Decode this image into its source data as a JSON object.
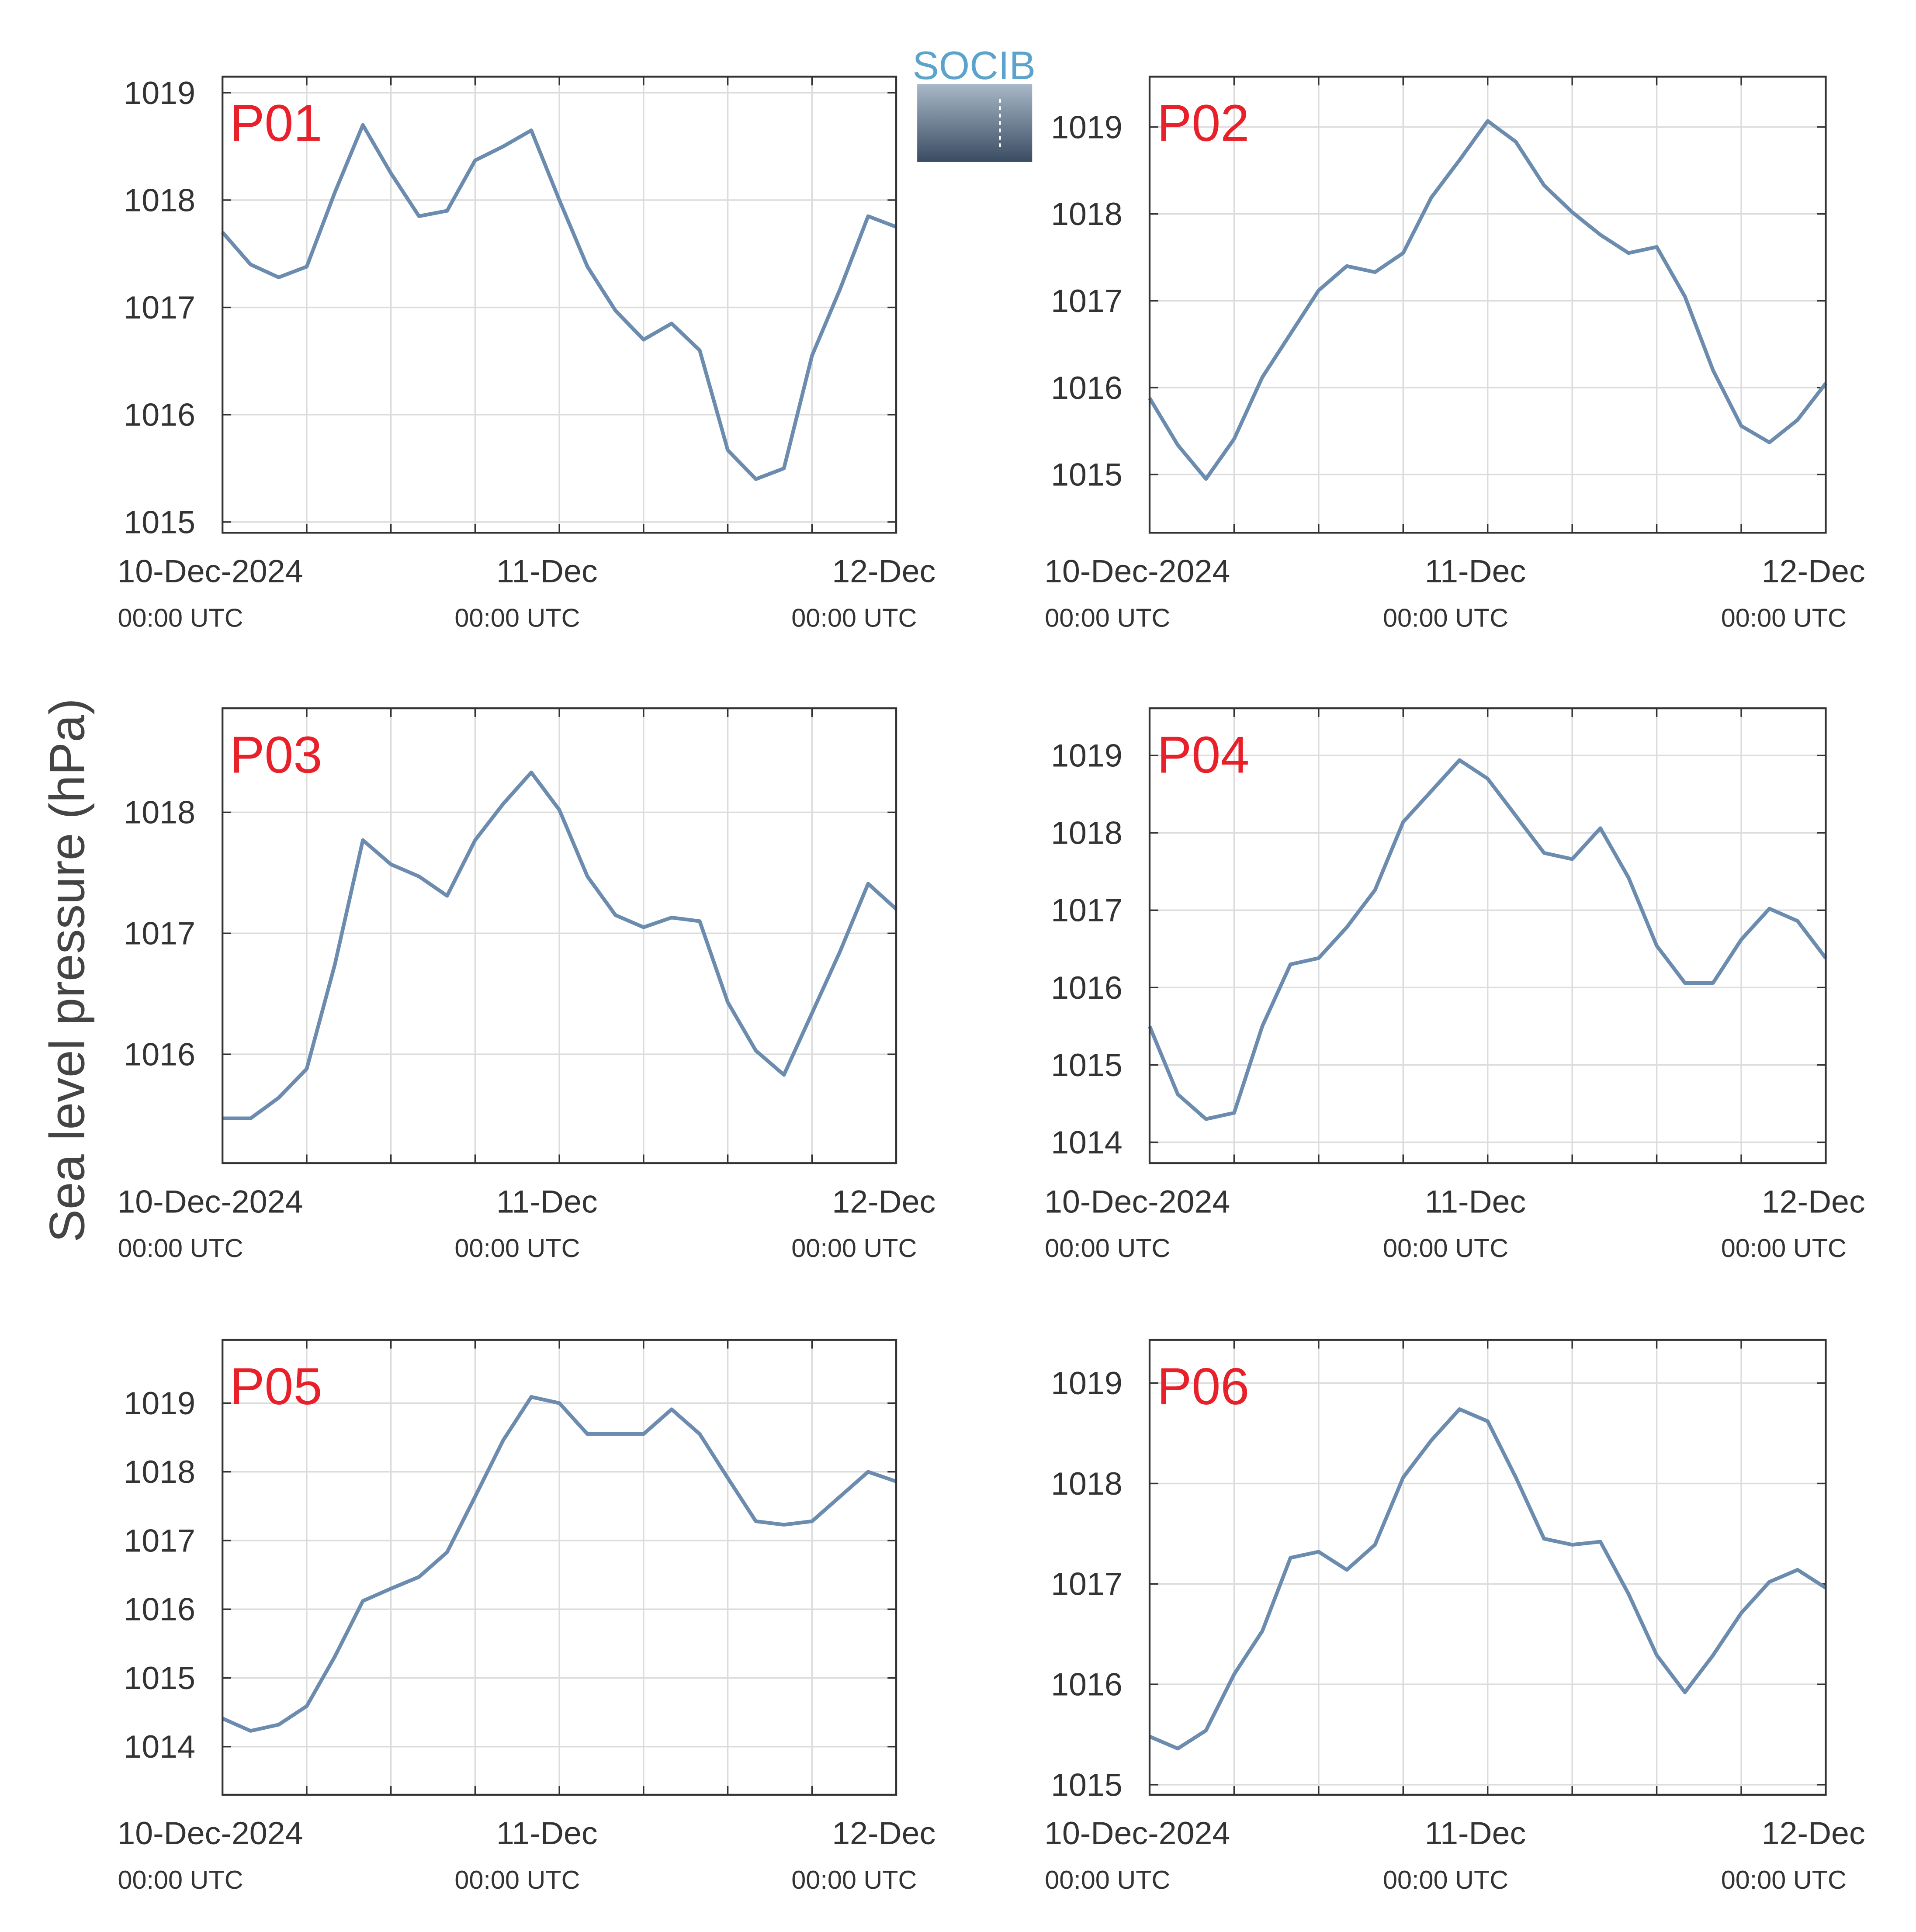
{
  "ylabel": "Sea level pressure (hPa)",
  "logo": "SOCIB",
  "chart_data": [
    {
      "type": "line",
      "title": "P01",
      "color": "#6b8cae",
      "grid": true,
      "x": [
        "2024-12-10T00:00Z",
        "2024-12-10T02:00Z",
        "2024-12-10T04:00Z",
        "2024-12-10T06:00Z",
        "2024-12-10T08:00Z",
        "2024-12-10T10:00Z",
        "2024-12-10T12:00Z",
        "2024-12-10T14:00Z",
        "2024-12-10T16:00Z",
        "2024-12-10T18:00Z",
        "2024-12-10T20:00Z",
        "2024-12-10T22:00Z",
        "2024-12-11T00:00Z",
        "2024-12-11T02:00Z",
        "2024-12-11T04:00Z",
        "2024-12-11T06:00Z",
        "2024-12-11T08:00Z",
        "2024-12-11T10:00Z",
        "2024-12-11T12:00Z",
        "2024-12-11T14:00Z",
        "2024-12-11T16:00Z",
        "2024-12-11T18:00Z",
        "2024-12-11T20:00Z",
        "2024-12-11T22:00Z",
        "2024-12-12T00:00Z"
      ],
      "values": [
        1017.7,
        1017.4,
        1017.28,
        1017.38,
        1018.07,
        1018.7,
        1018.25,
        1017.85,
        1017.9,
        1018.37,
        1018.5,
        1018.65,
        1018.0,
        1017.38,
        1016.97,
        1016.7,
        1016.85,
        1016.6,
        1015.67,
        1015.4,
        1015.5,
        1016.55,
        1017.17,
        1017.85,
        1017.75
      ],
      "xlim": [
        "2024-12-10T00:00Z",
        "2024-12-12T00:00Z"
      ],
      "xticks": [
        {
          "value": "2024-12-10T00:00Z",
          "label": "10-Dec-2024",
          "sublabel": "00:00 UTC"
        },
        {
          "value": "2024-12-10T06:00Z"
        },
        {
          "value": "2024-12-10T12:00Z"
        },
        {
          "value": "2024-12-10T18:00Z"
        },
        {
          "value": "2024-12-11T00:00Z",
          "label": "11-Dec",
          "sublabel": "00:00 UTC"
        },
        {
          "value": "2024-12-11T06:00Z"
        },
        {
          "value": "2024-12-11T12:00Z"
        },
        {
          "value": "2024-12-11T18:00Z"
        },
        {
          "value": "2024-12-12T00:00Z",
          "label": "12-Dec",
          "sublabel": "00:00 UTC"
        }
      ],
      "ylim": [
        1014.9,
        1019.15
      ],
      "yticks": [
        1015,
        1016,
        1017,
        1018,
        1019
      ]
    },
    {
      "type": "line",
      "title": "P02",
      "color": "#6b8cae",
      "grid": true,
      "x": [
        "2024-12-10T00:00Z",
        "2024-12-10T02:00Z",
        "2024-12-10T04:00Z",
        "2024-12-10T06:00Z",
        "2024-12-10T08:00Z",
        "2024-12-10T10:00Z",
        "2024-12-10T12:00Z",
        "2024-12-10T14:00Z",
        "2024-12-10T16:00Z",
        "2024-12-10T18:00Z",
        "2024-12-10T20:00Z",
        "2024-12-10T22:00Z",
        "2024-12-11T00:00Z",
        "2024-12-11T02:00Z",
        "2024-12-11T04:00Z",
        "2024-12-11T06:00Z",
        "2024-12-11T08:00Z",
        "2024-12-11T10:00Z",
        "2024-12-11T12:00Z",
        "2024-12-11T14:00Z",
        "2024-12-11T16:00Z",
        "2024-12-11T18:00Z",
        "2024-12-11T20:00Z",
        "2024-12-11T22:00Z",
        "2024-12-12T00:00Z"
      ],
      "values": [
        1015.88,
        1015.34,
        1014.95,
        1015.41,
        1016.12,
        1016.62,
        1017.12,
        1017.4,
        1017.33,
        1017.55,
        1018.19,
        1018.62,
        1019.07,
        1018.83,
        1018.33,
        1018.02,
        1017.76,
        1017.55,
        1017.62,
        1017.05,
        1016.2,
        1015.56,
        1015.37,
        1015.63,
        1016.05
      ],
      "xlim": [
        "2024-12-10T00:00Z",
        "2024-12-12T00:00Z"
      ],
      "xticks": [
        {
          "value": "2024-12-10T00:00Z",
          "label": "10-Dec-2024",
          "sublabel": "00:00 UTC"
        },
        {
          "value": "2024-12-10T06:00Z"
        },
        {
          "value": "2024-12-10T12:00Z"
        },
        {
          "value": "2024-12-10T18:00Z"
        },
        {
          "value": "2024-12-11T00:00Z",
          "label": "11-Dec",
          "sublabel": "00:00 UTC"
        },
        {
          "value": "2024-12-11T06:00Z"
        },
        {
          "value": "2024-12-11T12:00Z"
        },
        {
          "value": "2024-12-11T18:00Z"
        },
        {
          "value": "2024-12-12T00:00Z",
          "label": "12-Dec",
          "sublabel": "00:00 UTC"
        }
      ],
      "ylim": [
        1014.33,
        1019.58
      ],
      "yticks": [
        1015,
        1016,
        1017,
        1018,
        1019
      ]
    },
    {
      "type": "line",
      "title": "P03",
      "color": "#6b8cae",
      "grid": true,
      "x": [
        "2024-12-10T00:00Z",
        "2024-12-10T02:00Z",
        "2024-12-10T04:00Z",
        "2024-12-10T06:00Z",
        "2024-12-10T08:00Z",
        "2024-12-10T10:00Z",
        "2024-12-10T12:00Z",
        "2024-12-10T14:00Z",
        "2024-12-10T16:00Z",
        "2024-12-10T18:00Z",
        "2024-12-10T20:00Z",
        "2024-12-10T22:00Z",
        "2024-12-11T00:00Z",
        "2024-12-11T02:00Z",
        "2024-12-11T04:00Z",
        "2024-12-11T06:00Z",
        "2024-12-11T08:00Z",
        "2024-12-11T10:00Z",
        "2024-12-11T12:00Z",
        "2024-12-11T14:00Z",
        "2024-12-11T16:00Z",
        "2024-12-11T18:00Z",
        "2024-12-11T20:00Z",
        "2024-12-11T22:00Z",
        "2024-12-12T00:00Z"
      ],
      "values": [
        1015.47,
        1015.47,
        1015.64,
        1015.88,
        1016.74,
        1017.77,
        1017.57,
        1017.47,
        1017.31,
        1017.77,
        1018.07,
        1018.33,
        1018.02,
        1017.47,
        1017.15,
        1017.05,
        1017.13,
        1017.1,
        1016.43,
        1016.03,
        1015.83,
        1016.34,
        1016.85,
        1017.41,
        1017.2
      ],
      "xlim": [
        "2024-12-10T00:00Z",
        "2024-12-12T00:00Z"
      ],
      "xticks": [
        {
          "value": "2024-12-10T00:00Z",
          "label": "10-Dec-2024",
          "sublabel": "00:00 UTC"
        },
        {
          "value": "2024-12-10T06:00Z"
        },
        {
          "value": "2024-12-10T12:00Z"
        },
        {
          "value": "2024-12-10T18:00Z"
        },
        {
          "value": "2024-12-11T00:00Z",
          "label": "11-Dec",
          "sublabel": "00:00 UTC"
        },
        {
          "value": "2024-12-11T06:00Z"
        },
        {
          "value": "2024-12-11T12:00Z"
        },
        {
          "value": "2024-12-11T18:00Z"
        },
        {
          "value": "2024-12-12T00:00Z",
          "label": "12-Dec",
          "sublabel": "00:00 UTC"
        }
      ],
      "ylim": [
        1015.1,
        1018.86
      ],
      "yticks": [
        1016,
        1017,
        1018
      ]
    },
    {
      "type": "line",
      "title": "P04",
      "color": "#6b8cae",
      "grid": true,
      "x": [
        "2024-12-10T00:00Z",
        "2024-12-10T02:00Z",
        "2024-12-10T04:00Z",
        "2024-12-10T06:00Z",
        "2024-12-10T08:00Z",
        "2024-12-10T10:00Z",
        "2024-12-10T12:00Z",
        "2024-12-10T14:00Z",
        "2024-12-10T16:00Z",
        "2024-12-10T18:00Z",
        "2024-12-10T20:00Z",
        "2024-12-10T22:00Z",
        "2024-12-11T00:00Z",
        "2024-12-11T02:00Z",
        "2024-12-11T04:00Z",
        "2024-12-11T06:00Z",
        "2024-12-11T08:00Z",
        "2024-12-11T10:00Z",
        "2024-12-11T12:00Z",
        "2024-12-11T14:00Z",
        "2024-12-11T16:00Z",
        "2024-12-11T18:00Z",
        "2024-12-11T20:00Z",
        "2024-12-11T22:00Z",
        "2024-12-12T00:00Z"
      ],
      "values": [
        1015.5,
        1014.62,
        1014.3,
        1014.38,
        1015.5,
        1016.3,
        1016.38,
        1016.78,
        1017.26,
        1018.14,
        1018.54,
        1018.94,
        1018.7,
        1018.22,
        1017.74,
        1017.66,
        1018.06,
        1017.42,
        1016.54,
        1016.06,
        1016.06,
        1016.62,
        1017.02,
        1016.86,
        1016.38
      ],
      "xlim": [
        "2024-12-10T00:00Z",
        "2024-12-12T00:00Z"
      ],
      "xticks": [
        {
          "value": "2024-12-10T00:00Z",
          "label": "10-Dec-2024",
          "sublabel": "00:00 UTC"
        },
        {
          "value": "2024-12-10T06:00Z"
        },
        {
          "value": "2024-12-10T12:00Z"
        },
        {
          "value": "2024-12-10T18:00Z"
        },
        {
          "value": "2024-12-11T00:00Z",
          "label": "11-Dec",
          "sublabel": "00:00 UTC"
        },
        {
          "value": "2024-12-11T06:00Z"
        },
        {
          "value": "2024-12-11T12:00Z"
        },
        {
          "value": "2024-12-11T18:00Z"
        },
        {
          "value": "2024-12-12T00:00Z",
          "label": "12-Dec",
          "sublabel": "00:00 UTC"
        }
      ],
      "ylim": [
        1013.73,
        1019.61
      ],
      "yticks": [
        1014,
        1015,
        1016,
        1017,
        1018,
        1019
      ]
    },
    {
      "type": "line",
      "title": "P05",
      "color": "#6b8cae",
      "grid": true,
      "x": [
        "2024-12-10T00:00Z",
        "2024-12-10T02:00Z",
        "2024-12-10T04:00Z",
        "2024-12-10T06:00Z",
        "2024-12-10T08:00Z",
        "2024-12-10T10:00Z",
        "2024-12-10T12:00Z",
        "2024-12-10T14:00Z",
        "2024-12-10T16:00Z",
        "2024-12-10T18:00Z",
        "2024-12-10T20:00Z",
        "2024-12-10T22:00Z",
        "2024-12-11T00:00Z",
        "2024-12-11T02:00Z",
        "2024-12-11T04:00Z",
        "2024-12-11T06:00Z",
        "2024-12-11T08:00Z",
        "2024-12-11T10:00Z",
        "2024-12-11T12:00Z",
        "2024-12-11T14:00Z",
        "2024-12-11T16:00Z",
        "2024-12-11T18:00Z",
        "2024-12-11T20:00Z",
        "2024-12-11T22:00Z",
        "2024-12-12T00:00Z"
      ],
      "values": [
        1014.41,
        1014.23,
        1014.32,
        1014.59,
        1015.31,
        1016.12,
        1016.3,
        1016.47,
        1016.83,
        1017.64,
        1018.46,
        1019.09,
        1019.0,
        1018.55,
        1018.55,
        1018.55,
        1018.91,
        1018.55,
        1017.91,
        1017.28,
        1017.23,
        1017.28,
        1017.64,
        1018.0,
        1017.86
      ],
      "xlim": [
        "2024-12-10T00:00Z",
        "2024-12-12T00:00Z"
      ],
      "xticks": [
        {
          "value": "2024-12-10T00:00Z",
          "label": "10-Dec-2024",
          "sublabel": "00:00 UTC"
        },
        {
          "value": "2024-12-10T06:00Z"
        },
        {
          "value": "2024-12-10T12:00Z"
        },
        {
          "value": "2024-12-10T18:00Z"
        },
        {
          "value": "2024-12-11T00:00Z",
          "label": "11-Dec",
          "sublabel": "00:00 UTC"
        },
        {
          "value": "2024-12-11T06:00Z"
        },
        {
          "value": "2024-12-11T12:00Z"
        },
        {
          "value": "2024-12-11T18:00Z"
        },
        {
          "value": "2024-12-12T00:00Z",
          "label": "12-Dec",
          "sublabel": "00:00 UTC"
        }
      ],
      "ylim": [
        1013.3,
        1019.92
      ],
      "yticks": [
        1014,
        1015,
        1016,
        1017,
        1018,
        1019
      ]
    },
    {
      "type": "line",
      "title": "P06",
      "color": "#6b8cae",
      "grid": true,
      "x": [
        "2024-12-10T00:00Z",
        "2024-12-10T02:00Z",
        "2024-12-10T04:00Z",
        "2024-12-10T06:00Z",
        "2024-12-10T08:00Z",
        "2024-12-10T10:00Z",
        "2024-12-10T12:00Z",
        "2024-12-10T14:00Z",
        "2024-12-10T16:00Z",
        "2024-12-10T18:00Z",
        "2024-12-10T20:00Z",
        "2024-12-10T22:00Z",
        "2024-12-11T00:00Z",
        "2024-12-11T02:00Z",
        "2024-12-11T04:00Z",
        "2024-12-11T06:00Z",
        "2024-12-11T08:00Z",
        "2024-12-11T10:00Z",
        "2024-12-11T12:00Z",
        "2024-12-11T14:00Z",
        "2024-12-11T16:00Z",
        "2024-12-11T18:00Z",
        "2024-12-11T20:00Z",
        "2024-12-11T22:00Z",
        "2024-12-12T00:00Z"
      ],
      "values": [
        1015.48,
        1015.36,
        1015.54,
        1016.1,
        1016.53,
        1017.26,
        1017.32,
        1017.14,
        1017.39,
        1018.06,
        1018.43,
        1018.74,
        1018.62,
        1018.06,
        1017.45,
        1017.39,
        1017.42,
        1016.9,
        1016.29,
        1015.92,
        1016.29,
        1016.71,
        1017.02,
        1017.14,
        1016.96
      ],
      "xlim": [
        "2024-12-10T00:00Z",
        "2024-12-12T00:00Z"
      ],
      "xticks": [
        {
          "value": "2024-12-10T00:00Z",
          "label": "10-Dec-2024",
          "sublabel": "00:00 UTC"
        },
        {
          "value": "2024-12-10T06:00Z"
        },
        {
          "value": "2024-12-10T12:00Z"
        },
        {
          "value": "2024-12-10T18:00Z"
        },
        {
          "value": "2024-12-11T00:00Z",
          "label": "11-Dec",
          "sublabel": "00:00 UTC"
        },
        {
          "value": "2024-12-11T06:00Z"
        },
        {
          "value": "2024-12-11T12:00Z"
        },
        {
          "value": "2024-12-11T18:00Z"
        },
        {
          "value": "2024-12-12T00:00Z",
          "label": "12-Dec",
          "sublabel": "00:00 UTC"
        }
      ],
      "ylim": [
        1014.9,
        1019.43
      ],
      "yticks": [
        1015,
        1016,
        1017,
        1018,
        1019
      ]
    }
  ]
}
